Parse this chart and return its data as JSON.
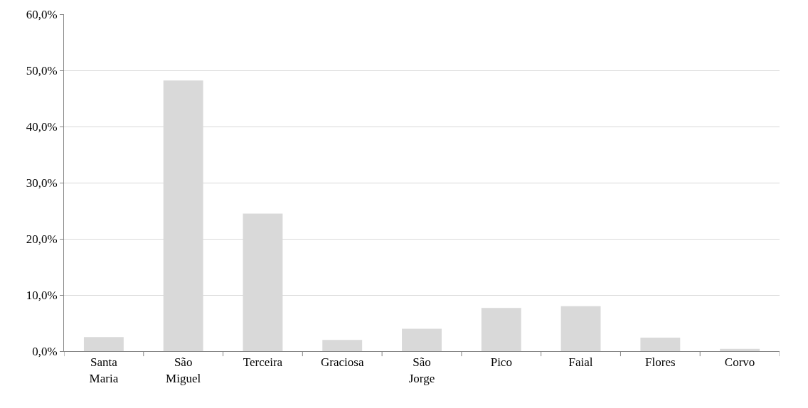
{
  "chart_data": {
    "type": "bar",
    "categories": [
      "Santa Maria",
      "São Miguel",
      "Terceira",
      "Graciosa",
      "São Jorge",
      "Pico",
      "Faial",
      "Flores",
      "Corvo"
    ],
    "values": [
      2.5,
      48.2,
      24.5,
      2.0,
      4.0,
      7.7,
      8.0,
      2.4,
      0.4
    ],
    "color": "#d9d9d9",
    "ylim": [
      0,
      60
    ],
    "yticks": [
      {
        "value": 0,
        "label": "0,0%"
      },
      {
        "value": 10,
        "label": "10,0%"
      },
      {
        "value": 20,
        "label": "20,0%"
      },
      {
        "value": 30,
        "label": "30,0%"
      },
      {
        "value": 40,
        "label": "40,0%"
      },
      {
        "value": 50,
        "label": "50,0%"
      },
      {
        "value": 60,
        "label": "60,0%"
      }
    ],
    "grid": "y"
  }
}
